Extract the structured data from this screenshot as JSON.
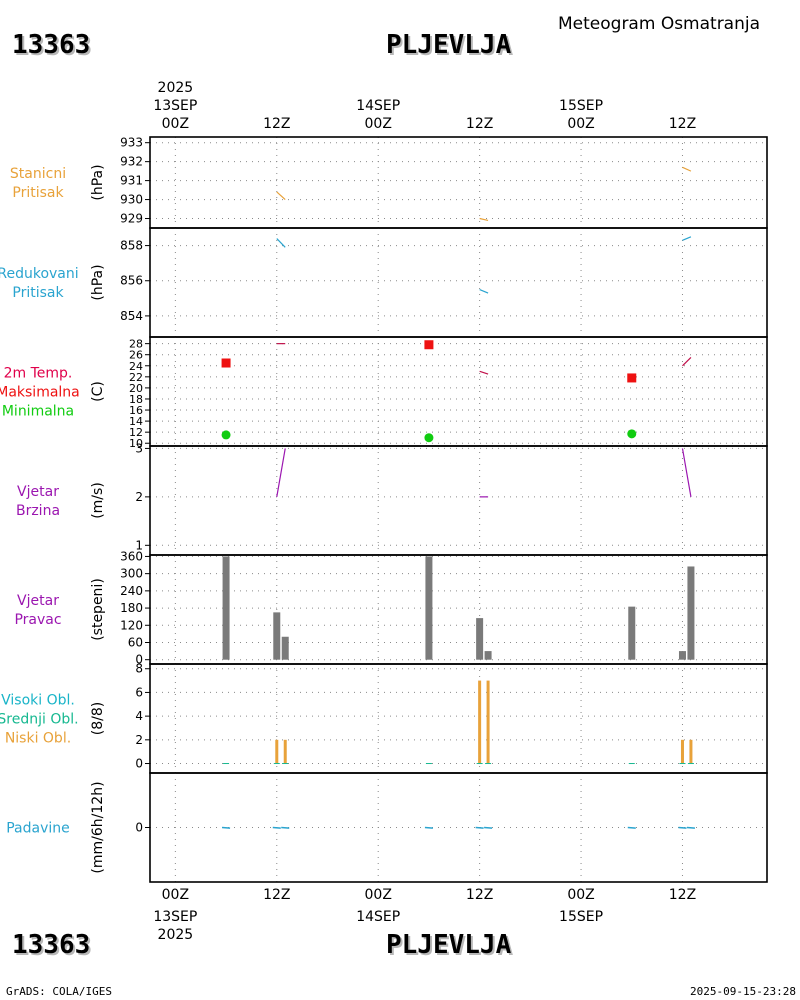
{
  "header": {
    "station_id": "13363",
    "station_name": "PLJEVLJA",
    "subtitle": "Meteogram Osmatranja"
  },
  "footer": {
    "station_id": "13363",
    "station_name": "PLJEVLJA",
    "credit": "GrADS: COLA/IGES",
    "timestamp": "2025-09-15-23:28"
  },
  "time_axis": {
    "year": "2025",
    "ticks": [
      {
        "hour": 0,
        "label": "00Z",
        "date": "13SEP"
      },
      {
        "hour": 12,
        "label": "12Z",
        "date": ""
      },
      {
        "hour": 24,
        "label": "00Z",
        "date": "14SEP"
      },
      {
        "hour": 36,
        "label": "12Z",
        "date": ""
      },
      {
        "hour": 48,
        "label": "00Z",
        "date": "15SEP"
      },
      {
        "hour": 60,
        "label": "12Z",
        "date": ""
      }
    ],
    "range_hours": [
      -3,
      70
    ]
  },
  "colors": {
    "station_pressure": "#e8a23a",
    "reduced_pressure": "#2aa4cf",
    "temp_label": "#e0004a",
    "tmax": "#ee1111",
    "tmin": "#11cc11",
    "wind": "#9b16b0",
    "bars": "#7a7a7a",
    "cloud_high": "#18b4c8",
    "cloud_mid": "#16b890",
    "cloud_low": "#e8a23a",
    "precip": "#2aa4cf"
  },
  "chart_data": [
    {
      "type": "line",
      "title_lines": [
        "Stanicni",
        "Pritisak"
      ],
      "ylabel": "(hPa)",
      "ylim": [
        928.5,
        933.3
      ],
      "yticks": [
        929,
        930,
        931,
        932,
        933
      ],
      "series": [
        {
          "name": "Stanicni pritisak",
          "color": "#e8a23a",
          "segments": [
            [
              [
                12,
                930.4
              ],
              [
                13,
                930.0
              ]
            ],
            [
              [
                36,
                929.0
              ],
              [
                37,
                928.9
              ]
            ],
            [
              [
                60,
                931.7
              ],
              [
                61,
                931.5
              ]
            ]
          ]
        }
      ]
    },
    {
      "type": "line",
      "title_lines": [
        "Redukovani",
        "Pritisak"
      ],
      "ylabel": "(hPa)",
      "ylim": [
        852.8,
        859.0
      ],
      "yticks": [
        854,
        856,
        858
      ],
      "series": [
        {
          "name": "Redukovani pritisak",
          "color": "#2aa4cf",
          "segments": [
            [
              [
                12,
                858.4
              ],
              [
                13,
                857.9
              ]
            ],
            [
              [
                36,
                855.5
              ],
              [
                37,
                855.3
              ]
            ],
            [
              [
                60,
                858.3
              ],
              [
                61,
                858.5
              ]
            ]
          ]
        }
      ]
    },
    {
      "type": "line",
      "title_lines": [
        "2m Temp.",
        "Maksimalna",
        "Minimalna"
      ],
      "ylabel": "(C)",
      "ylim": [
        9.5,
        29.2
      ],
      "yticks": [
        10,
        12,
        14,
        16,
        18,
        20,
        22,
        24,
        26,
        28
      ],
      "series": [
        {
          "name": "2m Temp",
          "color": "#c0104a",
          "segments": [
            [
              [
                12,
                28.0
              ],
              [
                13,
                28.0
              ]
            ],
            [
              [
                36,
                23.0
              ],
              [
                37,
                22.5
              ]
            ],
            [
              [
                60,
                24.0
              ],
              [
                61,
                25.5
              ]
            ]
          ]
        }
      ],
      "tmax": [
        {
          "x": 6,
          "y": 24.5
        },
        {
          "x": 30,
          "y": 27.8
        },
        {
          "x": 54,
          "y": 21.8
        }
      ],
      "tmin": [
        {
          "x": 6,
          "y": 11.5
        },
        {
          "x": 30,
          "y": 11.0
        },
        {
          "x": 54,
          "y": 11.7
        }
      ]
    },
    {
      "type": "line",
      "title_lines": [
        "Vjetar",
        "Brzina"
      ],
      "ylabel": "(m/s)",
      "ylim": [
        0.8,
        3.05
      ],
      "yticks": [
        1,
        2,
        3
      ],
      "series": [
        {
          "name": "Brzina vjetra",
          "color": "#9b16b0",
          "segments": [
            [
              [
                12,
                2.0
              ],
              [
                13,
                3.0
              ]
            ],
            [
              [
                36,
                2.0
              ],
              [
                37,
                2.0
              ]
            ],
            [
              [
                60,
                3.0
              ],
              [
                61,
                2.0
              ]
            ]
          ]
        }
      ]
    },
    {
      "type": "bar",
      "title_lines": [
        "Vjetar",
        "Pravac"
      ],
      "ylabel": "(stepeni)",
      "ylim": [
        -15,
        365
      ],
      "yticks": [
        0,
        60,
        120,
        180,
        240,
        300,
        360
      ],
      "ytick_labels": [
        "0",
        "60",
        "120",
        "180",
        "240",
        "300",
        "360"
      ],
      "bars": [
        {
          "x": 6,
          "value": 360
        },
        {
          "x": 12,
          "value": 165
        },
        {
          "x": 13,
          "value": 80
        },
        {
          "x": 30,
          "value": 360
        },
        {
          "x": 36,
          "value": 145
        },
        {
          "x": 37,
          "value": 30
        },
        {
          "x": 54,
          "value": 185
        },
        {
          "x": 60,
          "value": 30
        },
        {
          "x": 61,
          "value": 325
        }
      ]
    },
    {
      "type": "bar",
      "title_lines": [
        "Visoki Obl.",
        "Srednji Obl.",
        "Niski Obl."
      ],
      "ylabel": "(8/8)",
      "ylim": [
        -0.8,
        8.4
      ],
      "yticks": [
        0,
        2,
        4,
        6,
        8
      ],
      "bars": [
        {
          "x": 12,
          "value": 2
        },
        {
          "x": 13,
          "value": 2
        },
        {
          "x": 36,
          "value": 7
        },
        {
          "x": 37,
          "value": 7
        },
        {
          "x": 60,
          "value": 2
        },
        {
          "x": 61,
          "value": 2
        }
      ]
    },
    {
      "type": "bar",
      "title_lines": [
        "Padavine"
      ],
      "ylabel": "(mm/6h/12h)",
      "ylim": [
        -5,
        5
      ],
      "yticks": [
        0
      ],
      "bars": [
        {
          "x": 6,
          "value": 0
        },
        {
          "x": 12,
          "value": 0
        },
        {
          "x": 13,
          "value": 0
        },
        {
          "x": 30,
          "value": 0
        },
        {
          "x": 36,
          "value": 0
        },
        {
          "x": 37,
          "value": 0
        },
        {
          "x": 54,
          "value": 0
        },
        {
          "x": 60,
          "value": 0
        },
        {
          "x": 61,
          "value": 0
        }
      ]
    }
  ]
}
